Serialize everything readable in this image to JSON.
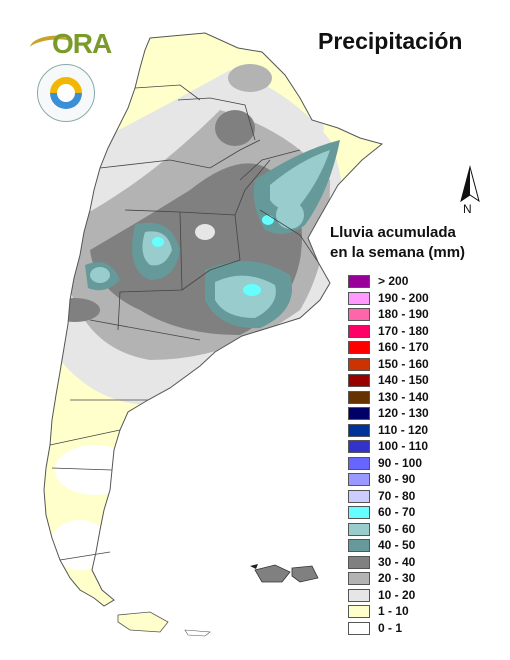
{
  "header": {
    "title": "Precipitación",
    "logo_text": "ORA"
  },
  "map": {
    "name": "Argentina",
    "north_label": "N",
    "colors": {
      "outline": "#555555",
      "province_border": "#444444"
    }
  },
  "legend": {
    "title_line1": "Lluvia acumulada",
    "title_line2": "en la semana (mm)",
    "items": [
      {
        "label": "> 200",
        "color": "#990099"
      },
      {
        "label": "190 - 200",
        "color": "#ff99ff"
      },
      {
        "label": "180 - 190",
        "color": "#ff66aa"
      },
      {
        "label": "170 - 180",
        "color": "#ff0066"
      },
      {
        "label": "160 - 170",
        "color": "#ff0000"
      },
      {
        "label": "150 - 160",
        "color": "#cc3300"
      },
      {
        "label": "140 - 150",
        "color": "#990000"
      },
      {
        "label": "130 - 140",
        "color": "#663300"
      },
      {
        "label": "120 - 130",
        "color": "#000066"
      },
      {
        "label": "110 - 120",
        "color": "#003399"
      },
      {
        "label": "100 - 110",
        "color": "#3333cc"
      },
      {
        "label": "90 - 100",
        "color": "#6666ff"
      },
      {
        "label": "80 - 90",
        "color": "#9999ff"
      },
      {
        "label": "70 - 80",
        "color": "#ccccff"
      },
      {
        "label": "60 - 70",
        "color": "#66ffff"
      },
      {
        "label": "50 - 60",
        "color": "#99cccc"
      },
      {
        "label": "40 - 50",
        "color": "#669999"
      },
      {
        "label": "30 - 40",
        "color": "#808080"
      },
      {
        "label": "20 - 30",
        "color": "#b3b3b3"
      },
      {
        "label": "10 - 20",
        "color": "#e6e6e6"
      },
      {
        "label": "1 - 10",
        "color": "#ffffcc"
      },
      {
        "label": "0 - 1",
        "color": "#ffffff"
      }
    ]
  }
}
